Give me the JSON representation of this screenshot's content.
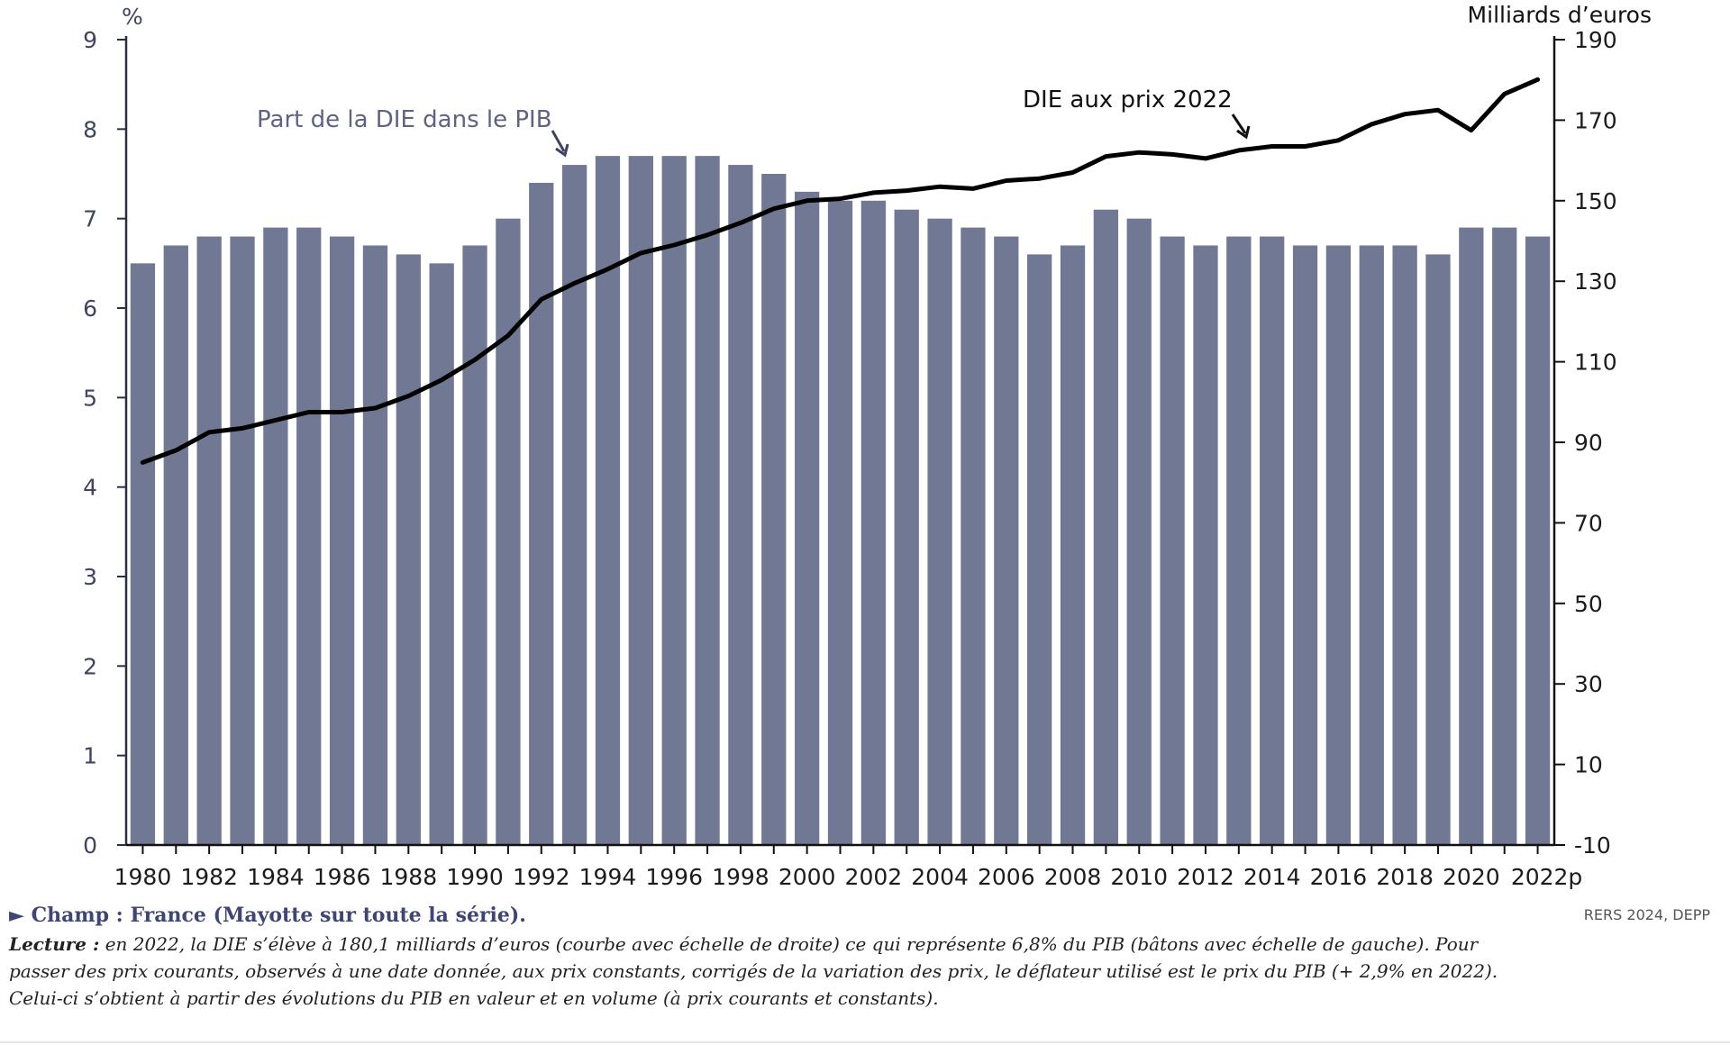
{
  "chart_data": {
    "type": "bar+line",
    "categories": [
      "1980",
      "1981",
      "1982",
      "1983",
      "1984",
      "1985",
      "1986",
      "1987",
      "1988",
      "1989",
      "1990",
      "1991",
      "1992",
      "1993",
      "1994",
      "1995",
      "1996",
      "1997",
      "1998",
      "1999",
      "2000",
      "2001",
      "2002",
      "2003",
      "2004",
      "2005",
      "2006",
      "2007",
      "2008",
      "2009",
      "2010",
      "2011",
      "2012",
      "2013",
      "2014",
      "2015",
      "2016",
      "2017",
      "2018",
      "2019",
      "2020",
      "2021",
      "2022p"
    ],
    "x_tick_labels": [
      "1980",
      "1982",
      "1984",
      "1986",
      "1988",
      "1990",
      "1992",
      "1994",
      "1996",
      "1998",
      "2000",
      "2002",
      "2004",
      "2006",
      "2008",
      "2010",
      "2012",
      "2014",
      "2016",
      "2018",
      "2020",
      "2022p"
    ],
    "series": [
      {
        "name": "Part de la DIE dans le PIB",
        "type": "bar",
        "axis": "left",
        "unit": "%",
        "values": [
          6.5,
          6.7,
          6.8,
          6.8,
          6.9,
          6.9,
          6.8,
          6.7,
          6.6,
          6.5,
          6.7,
          7.0,
          7.4,
          7.6,
          7.7,
          7.7,
          7.7,
          7.7,
          7.6,
          7.5,
          7.3,
          7.2,
          7.2,
          7.1,
          7.0,
          6.9,
          6.8,
          6.6,
          6.7,
          7.1,
          7.0,
          6.8,
          6.7,
          6.8,
          6.8,
          6.7,
          6.7,
          6.7,
          6.7,
          6.6,
          6.9,
          6.9,
          6.8
        ]
      },
      {
        "name": "DIE aux prix 2022",
        "type": "line",
        "axis": "right",
        "unit": "Milliards d'euros",
        "values": [
          85.0,
          88.0,
          92.5,
          93.5,
          95.5,
          97.5,
          97.5,
          98.5,
          101.5,
          105.5,
          110.5,
          116.5,
          125.5,
          129.5,
          133.0,
          137.0,
          139.0,
          141.5,
          144.5,
          148.0,
          150.0,
          150.5,
          152.0,
          152.5,
          153.5,
          153.0,
          155.0,
          155.5,
          157.0,
          161.0,
          162.0,
          161.5,
          160.5,
          162.5,
          163.5,
          163.5,
          165.0,
          169.0,
          171.5,
          172.5,
          167.5,
          176.5,
          180.1
        ]
      }
    ],
    "y_left": {
      "label": "%",
      "ylim": [
        0,
        9
      ],
      "ticks": [
        "0",
        "1",
        "2",
        "3",
        "4",
        "5",
        "6",
        "7",
        "8",
        "9"
      ]
    },
    "y_right": {
      "label": "Milliards d’euros",
      "ylim": [
        -10,
        190
      ],
      "ticks": [
        "-10",
        "10",
        "30",
        "50",
        "70",
        "90",
        "110",
        "130",
        "150",
        "170",
        "190"
      ]
    },
    "annotations": [
      {
        "text": "Part de la DIE dans le PIB",
        "series": "Part de la DIE dans le PIB"
      },
      {
        "text": "DIE aux prix 2022",
        "series": "DIE aux prix 2022"
      }
    ],
    "colors": {
      "bar": "#717893",
      "line": "#000000",
      "left_axis": "#3f4461",
      "annotation_left": "#5e6383",
      "annotation_right": "#111111"
    }
  },
  "notes": {
    "champ": "► Champ : France (Mayotte sur toute la série).",
    "lecture_label": "Lecture :",
    "lecture_text": " en 2022, la DIE s’élève à 180,1 milliards d’euros (courbe avec échelle de droite) ce qui représente 6,8% du PIB (bâtons avec échelle de gauche). Pour passer des prix courants, observés à une date donnée, aux prix constants, corrigés de la variation des prix, le déflateur utilisé est le prix du PIB (+ 2,9% en 2022). Celui-ci s’obtient à partir des évolutions du PIB en valeur et en volume (à prix courants et constants).",
    "source": "RERS 2024, DEPP"
  }
}
